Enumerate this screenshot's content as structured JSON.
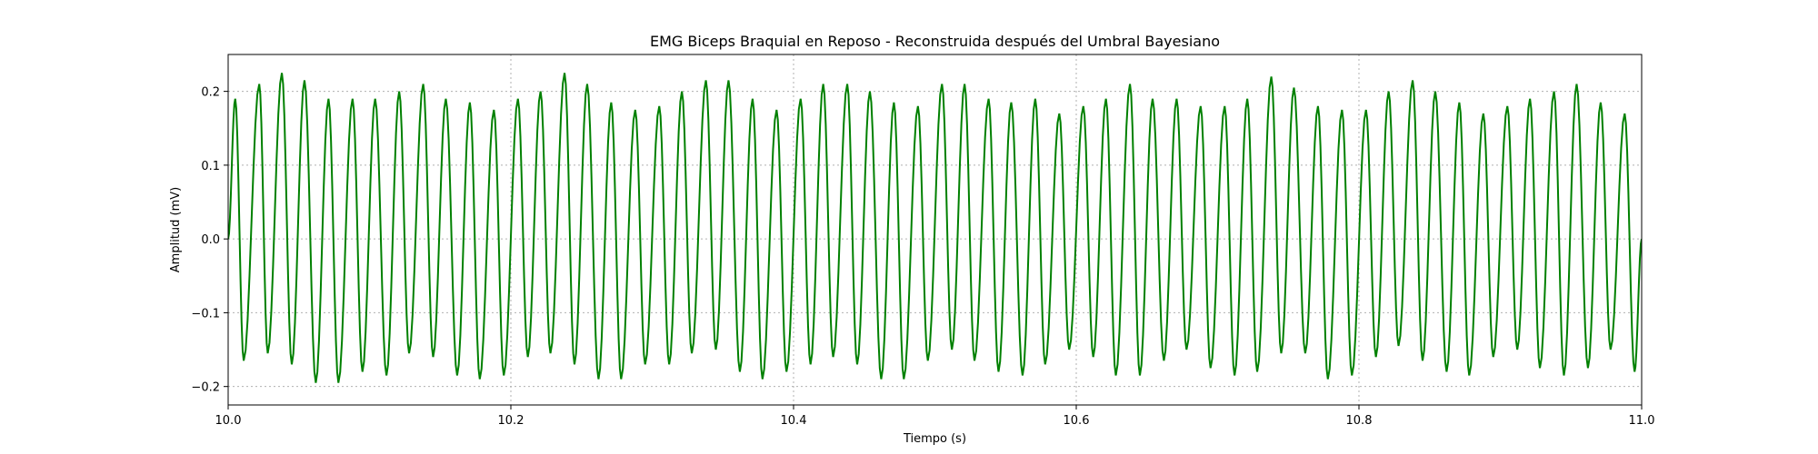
{
  "chart_data": {
    "type": "line",
    "title": "EMG Biceps Braquial en Reposo - Reconstruida después del Umbral Bayesiano",
    "xlabel": "Tiempo (s)",
    "ylabel": "Amplitud (mV)",
    "xlim": [
      10.0,
      11.0
    ],
    "ylim": [
      -0.225,
      0.25
    ],
    "xticks": [
      10.0,
      10.2,
      10.4,
      10.6,
      10.8,
      11.0
    ],
    "xtick_labels": [
      "10.0",
      "10.2",
      "10.4",
      "10.6",
      "10.8",
      "11.0"
    ],
    "yticks": [
      -0.2,
      -0.1,
      0.0,
      0.1,
      0.2
    ],
    "ytick_labels": [
      "−0.2",
      "−0.1",
      "0.0",
      "0.1",
      "0.2"
    ],
    "grid": true,
    "legend": false,
    "color": "#008000",
    "series": [
      {
        "peak_times": [
          10.005,
          10.022,
          10.038,
          10.054,
          10.071,
          10.088,
          10.104,
          10.121,
          10.138,
          10.154,
          10.171,
          10.188,
          10.205,
          10.221,
          10.238,
          10.254,
          10.271,
          10.288,
          10.305,
          10.321,
          10.338,
          10.354,
          10.371,
          10.388,
          10.405,
          10.421,
          10.438,
          10.454,
          10.471,
          10.488,
          10.505,
          10.521,
          10.538,
          10.554,
          10.571,
          10.588,
          10.605,
          10.621,
          10.638,
          10.654,
          10.671,
          10.688,
          10.705,
          10.721,
          10.738,
          10.754,
          10.771,
          10.788,
          10.805,
          10.821,
          10.838,
          10.854,
          10.871,
          10.888,
          10.905,
          10.921,
          10.938,
          10.954,
          10.971,
          10.988
        ],
        "peak_values": [
          0.19,
          0.21,
          0.225,
          0.215,
          0.19,
          0.19,
          0.19,
          0.2,
          0.21,
          0.19,
          0.185,
          0.175,
          0.19,
          0.2,
          0.225,
          0.21,
          0.185,
          0.175,
          0.18,
          0.2,
          0.215,
          0.215,
          0.19,
          0.175,
          0.19,
          0.21,
          0.21,
          0.2,
          0.185,
          0.18,
          0.21,
          0.21,
          0.19,
          0.185,
          0.19,
          0.17,
          0.18,
          0.19,
          0.21,
          0.19,
          0.19,
          0.18,
          0.18,
          0.19,
          0.22,
          0.205,
          0.18,
          0.175,
          0.175,
          0.2,
          0.215,
          0.2,
          0.185,
          0.17,
          0.18,
          0.19,
          0.2,
          0.21,
          0.185,
          0.17
        ],
        "trough_times": [
          10.011,
          10.028,
          10.045,
          10.062,
          10.078,
          10.095,
          10.112,
          10.128,
          10.145,
          10.162,
          10.178,
          10.195,
          10.212,
          10.228,
          10.245,
          10.262,
          10.278,
          10.295,
          10.312,
          10.328,
          10.345,
          10.362,
          10.378,
          10.395,
          10.412,
          10.428,
          10.445,
          10.462,
          10.478,
          10.495,
          10.512,
          10.528,
          10.545,
          10.562,
          10.578,
          10.595,
          10.612,
          10.628,
          10.645,
          10.662,
          10.678,
          10.695,
          10.712,
          10.728,
          10.745,
          10.762,
          10.778,
          10.795,
          10.812,
          10.828,
          10.845,
          10.862,
          10.878,
          10.895,
          10.912,
          10.928,
          10.945,
          10.962,
          10.978,
          10.995
        ],
        "trough_values": [
          -0.165,
          -0.155,
          -0.17,
          -0.195,
          -0.195,
          -0.18,
          -0.185,
          -0.155,
          -0.16,
          -0.185,
          -0.19,
          -0.185,
          -0.16,
          -0.155,
          -0.17,
          -0.19,
          -0.19,
          -0.17,
          -0.17,
          -0.155,
          -0.15,
          -0.18,
          -0.19,
          -0.18,
          -0.17,
          -0.16,
          -0.17,
          -0.19,
          -0.19,
          -0.165,
          -0.15,
          -0.165,
          -0.18,
          -0.185,
          -0.17,
          -0.15,
          -0.16,
          -0.185,
          -0.185,
          -0.165,
          -0.15,
          -0.175,
          -0.185,
          -0.18,
          -0.155,
          -0.155,
          -0.19,
          -0.185,
          -0.16,
          -0.145,
          -0.165,
          -0.18,
          -0.185,
          -0.16,
          -0.15,
          -0.175,
          -0.185,
          -0.175,
          -0.15,
          -0.18
        ]
      }
    ]
  }
}
